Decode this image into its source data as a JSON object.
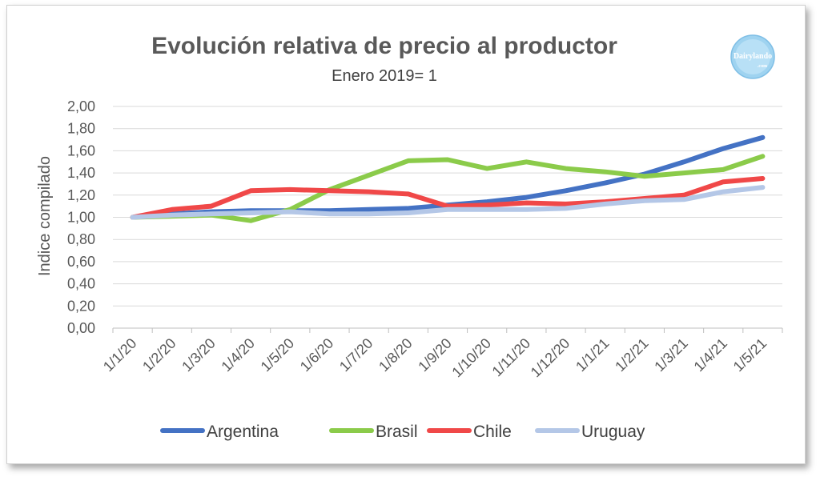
{
  "chart_data": {
    "type": "line",
    "title": "Evolución relativa de precio al productor",
    "subtitle": "Enero 2019= 1",
    "xlabel": "",
    "ylabel": "Indice compilado",
    "ylim": [
      0,
      2
    ],
    "yticks": [
      "0,00",
      "0,20",
      "0,40",
      "0,60",
      "0,80",
      "1,00",
      "1,20",
      "1,40",
      "1,60",
      "1,80",
      "2,00"
    ],
    "ytick_values": [
      0,
      0.2,
      0.4,
      0.6,
      0.8,
      1.0,
      1.2,
      1.4,
      1.6,
      1.8,
      2.0
    ],
    "categories": [
      "1/1/20",
      "1/2/20",
      "1/3/20",
      "1/4/20",
      "1/5/20",
      "1/6/20",
      "1/7/20",
      "1/8/20",
      "1/9/20",
      "1/10/20",
      "1/11/20",
      "1/12/20",
      "1/1/21",
      "1/2/21",
      "1/3/21",
      "1/4/21",
      "1/5/21"
    ],
    "grid": true,
    "legend_position": "bottom",
    "series": [
      {
        "name": "Argentina",
        "color": "#4472C4",
        "values": [
          1.0,
          1.03,
          1.05,
          1.06,
          1.06,
          1.06,
          1.07,
          1.08,
          1.11,
          1.14,
          1.18,
          1.24,
          1.31,
          1.39,
          1.5,
          1.62,
          1.72
        ]
      },
      {
        "name": "Brasil",
        "color": "#8BCB4A",
        "values": [
          1.0,
          1.01,
          1.02,
          0.97,
          1.07,
          1.25,
          1.38,
          1.51,
          1.52,
          1.44,
          1.5,
          1.44,
          1.41,
          1.37,
          1.4,
          1.43,
          1.55
        ]
      },
      {
        "name": "Chile",
        "color": "#F04848",
        "values": [
          1.0,
          1.07,
          1.1,
          1.24,
          1.25,
          1.24,
          1.23,
          1.21,
          1.1,
          1.11,
          1.13,
          1.12,
          1.14,
          1.17,
          1.2,
          1.32,
          1.35
        ]
      },
      {
        "name": "Uruguay",
        "color": "#B4C7E7",
        "values": [
          1.0,
          1.02,
          1.03,
          1.04,
          1.05,
          1.03,
          1.03,
          1.04,
          1.07,
          1.07,
          1.07,
          1.08,
          1.12,
          1.15,
          1.16,
          1.23,
          1.27
        ]
      }
    ]
  },
  "logo": {
    "text": "Dairylando",
    "subtext": ".com"
  }
}
